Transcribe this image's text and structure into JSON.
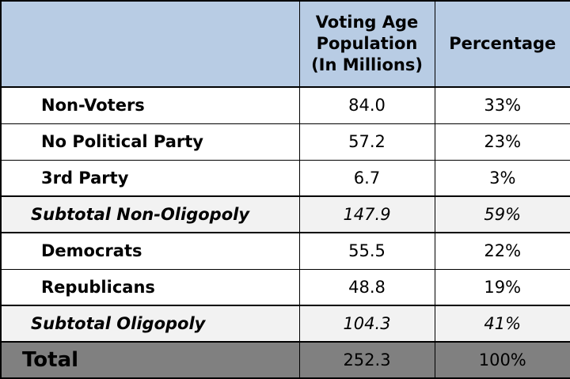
{
  "chart_data": {
    "type": "table",
    "columns": [
      "",
      "Voting Age Population (In Millions)",
      "Percentage"
    ],
    "header_lines": {
      "col2": [
        "Voting Age",
        "Population",
        "(In Millions)"
      ],
      "col3": "Percentage"
    },
    "rows": [
      {
        "label": "Non-Voters",
        "population": "84.0",
        "percentage": "33%",
        "kind": "item"
      },
      {
        "label": "No Political Party",
        "population": "57.2",
        "percentage": "23%",
        "kind": "item"
      },
      {
        "label": "3rd Party",
        "population": "6.7",
        "percentage": "3%",
        "kind": "item"
      },
      {
        "label": "Subtotal Non-Oligopoly",
        "population": "147.9",
        "percentage": "59%",
        "kind": "subtotal"
      },
      {
        "label": "Democrats",
        "population": "55.5",
        "percentage": "22%",
        "kind": "item"
      },
      {
        "label": "Republicans",
        "population": "48.8",
        "percentage": "19%",
        "kind": "item"
      },
      {
        "label": "Subtotal Oligopoly",
        "population": "104.3",
        "percentage": "41%",
        "kind": "subtotal"
      },
      {
        "label": "Total",
        "population": "252.3",
        "percentage": "100%",
        "kind": "total"
      }
    ]
  },
  "colors": {
    "header_background": "#b8cce4",
    "subtotal_background": "#f2f2f2",
    "total_background": "#808080"
  }
}
